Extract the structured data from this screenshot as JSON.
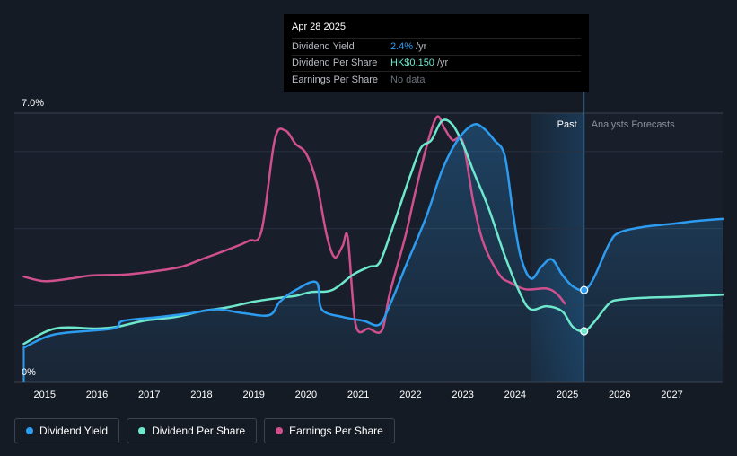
{
  "tooltip": {
    "date": "Apr 28 2025",
    "rows": [
      {
        "label": "Dividend Yield",
        "value": "2.4%",
        "unit": "/yr",
        "color": "#2d9cf0"
      },
      {
        "label": "Dividend Per Share",
        "value": "HK$0.150",
        "unit": "/yr",
        "color": "#6ee8cc"
      },
      {
        "label": "Earnings Per Share",
        "value": "No data",
        "unit": "",
        "color": "#6b7079"
      }
    ]
  },
  "regions": {
    "past": "Past",
    "forecast": "Analysts Forecasts"
  },
  "legend": [
    {
      "label": "Dividend Yield",
      "color": "#2d9cf0"
    },
    {
      "label": "Dividend Per Share",
      "color": "#6ee8cc"
    },
    {
      "label": "Earnings Per Share",
      "color": "#d0508e"
    }
  ],
  "chart_data": {
    "type": "line",
    "y_tick_labels": [
      "7.0%",
      "0%"
    ],
    "ylim": [
      0,
      7.0
    ],
    "xlim": [
      2014.42,
      2027.97
    ],
    "x_ticks": [
      2015,
      2016,
      2017,
      2018,
      2019,
      2020,
      2021,
      2022,
      2023,
      2024,
      2025,
      2026,
      2027
    ],
    "past_start": 2024.31,
    "forecast_start": 2025.32,
    "grid": true,
    "legend_position": "bottom-left",
    "series": [
      {
        "name": "Dividend Yield",
        "color": "#2d9cf0",
        "area": true,
        "marker": [
          2025.32,
          2.4
        ],
        "points": [
          [
            2014.6,
            0.9
          ],
          [
            2015.2,
            1.25
          ],
          [
            2016.3,
            1.4
          ],
          [
            2016.5,
            1.6
          ],
          [
            2017.2,
            1.7
          ],
          [
            2017.8,
            1.8
          ],
          [
            2018.3,
            1.9
          ],
          [
            2018.8,
            1.8
          ],
          [
            2019.3,
            1.75
          ],
          [
            2019.5,
            2.1
          ],
          [
            2019.8,
            2.4
          ],
          [
            2020.2,
            2.6
          ],
          [
            2020.3,
            1.9
          ],
          [
            2020.7,
            1.7
          ],
          [
            2021.1,
            1.6
          ],
          [
            2021.4,
            1.5
          ],
          [
            2021.6,
            2.0
          ],
          [
            2021.9,
            3.0
          ],
          [
            2022.3,
            4.3
          ],
          [
            2022.6,
            5.5
          ],
          [
            2022.9,
            6.3
          ],
          [
            2023.2,
            6.7
          ],
          [
            2023.4,
            6.6
          ],
          [
            2023.6,
            6.3
          ],
          [
            2023.8,
            5.9
          ],
          [
            2023.95,
            4.5
          ],
          [
            2024.1,
            3.3
          ],
          [
            2024.3,
            2.7
          ],
          [
            2024.5,
            3.0
          ],
          [
            2024.7,
            3.2
          ],
          [
            2024.9,
            2.8
          ],
          [
            2025.1,
            2.5
          ],
          [
            2025.32,
            2.4
          ],
          [
            2025.5,
            2.7
          ],
          [
            2025.8,
            3.6
          ],
          [
            2026.0,
            3.9
          ],
          [
            2026.5,
            4.05
          ],
          [
            2027.0,
            4.12
          ],
          [
            2027.5,
            4.2
          ],
          [
            2027.97,
            4.25
          ]
        ]
      },
      {
        "name": "Dividend Per Share",
        "color": "#6ee8cc",
        "area": false,
        "marker": [
          2025.32,
          1.33
        ],
        "points": [
          [
            2014.6,
            1.0
          ],
          [
            2015.2,
            1.4
          ],
          [
            2016.0,
            1.4
          ],
          [
            2016.4,
            1.45
          ],
          [
            2016.9,
            1.6
          ],
          [
            2017.5,
            1.7
          ],
          [
            2018.0,
            1.85
          ],
          [
            2018.5,
            1.95
          ],
          [
            2019.0,
            2.1
          ],
          [
            2019.5,
            2.2
          ],
          [
            2019.8,
            2.25
          ],
          [
            2020.1,
            2.35
          ],
          [
            2020.5,
            2.4
          ],
          [
            2020.9,
            2.8
          ],
          [
            2021.2,
            3.0
          ],
          [
            2021.4,
            3.1
          ],
          [
            2021.6,
            3.8
          ],
          [
            2021.8,
            4.6
          ],
          [
            2022.0,
            5.4
          ],
          [
            2022.2,
            6.1
          ],
          [
            2022.4,
            6.3
          ],
          [
            2022.6,
            6.8
          ],
          [
            2022.8,
            6.7
          ],
          [
            2023.0,
            6.2
          ],
          [
            2023.2,
            5.5
          ],
          [
            2023.5,
            4.5
          ],
          [
            2023.8,
            3.3
          ],
          [
            2024.1,
            2.3
          ],
          [
            2024.3,
            1.9
          ],
          [
            2024.6,
            1.98
          ],
          [
            2024.9,
            1.85
          ],
          [
            2025.1,
            1.45
          ],
          [
            2025.32,
            1.33
          ],
          [
            2025.5,
            1.55
          ],
          [
            2025.8,
            2.05
          ],
          [
            2026.0,
            2.15
          ],
          [
            2026.5,
            2.2
          ],
          [
            2027.0,
            2.22
          ],
          [
            2027.5,
            2.25
          ],
          [
            2027.97,
            2.28
          ]
        ]
      },
      {
        "name": "Earnings Per Share",
        "color": "#d0508e",
        "area": false,
        "marker": null,
        "points": [
          [
            2014.6,
            2.75
          ],
          [
            2015.0,
            2.63
          ],
          [
            2015.5,
            2.7
          ],
          [
            2015.9,
            2.78
          ],
          [
            2016.5,
            2.8
          ],
          [
            2017.0,
            2.87
          ],
          [
            2017.6,
            3.0
          ],
          [
            2018.0,
            3.2
          ],
          [
            2018.5,
            3.45
          ],
          [
            2018.9,
            3.68
          ],
          [
            2019.15,
            3.95
          ],
          [
            2019.4,
            6.3
          ],
          [
            2019.6,
            6.55
          ],
          [
            2019.8,
            6.2
          ],
          [
            2020.0,
            5.95
          ],
          [
            2020.2,
            5.2
          ],
          [
            2020.4,
            3.8
          ],
          [
            2020.55,
            3.25
          ],
          [
            2020.7,
            3.55
          ],
          [
            2020.8,
            3.75
          ],
          [
            2020.95,
            1.5
          ],
          [
            2021.2,
            1.4
          ],
          [
            2021.45,
            1.35
          ],
          [
            2021.6,
            2.3
          ],
          [
            2021.9,
            3.8
          ],
          [
            2022.1,
            5.0
          ],
          [
            2022.3,
            6.1
          ],
          [
            2022.5,
            6.9
          ],
          [
            2022.65,
            6.6
          ],
          [
            2022.8,
            6.3
          ],
          [
            2023.0,
            6.25
          ],
          [
            2023.2,
            4.7
          ],
          [
            2023.4,
            3.6
          ],
          [
            2023.7,
            2.8
          ],
          [
            2023.9,
            2.6
          ],
          [
            2024.2,
            2.42
          ],
          [
            2024.6,
            2.44
          ],
          [
            2024.8,
            2.3
          ],
          [
            2024.95,
            2.05
          ]
        ]
      }
    ]
  }
}
